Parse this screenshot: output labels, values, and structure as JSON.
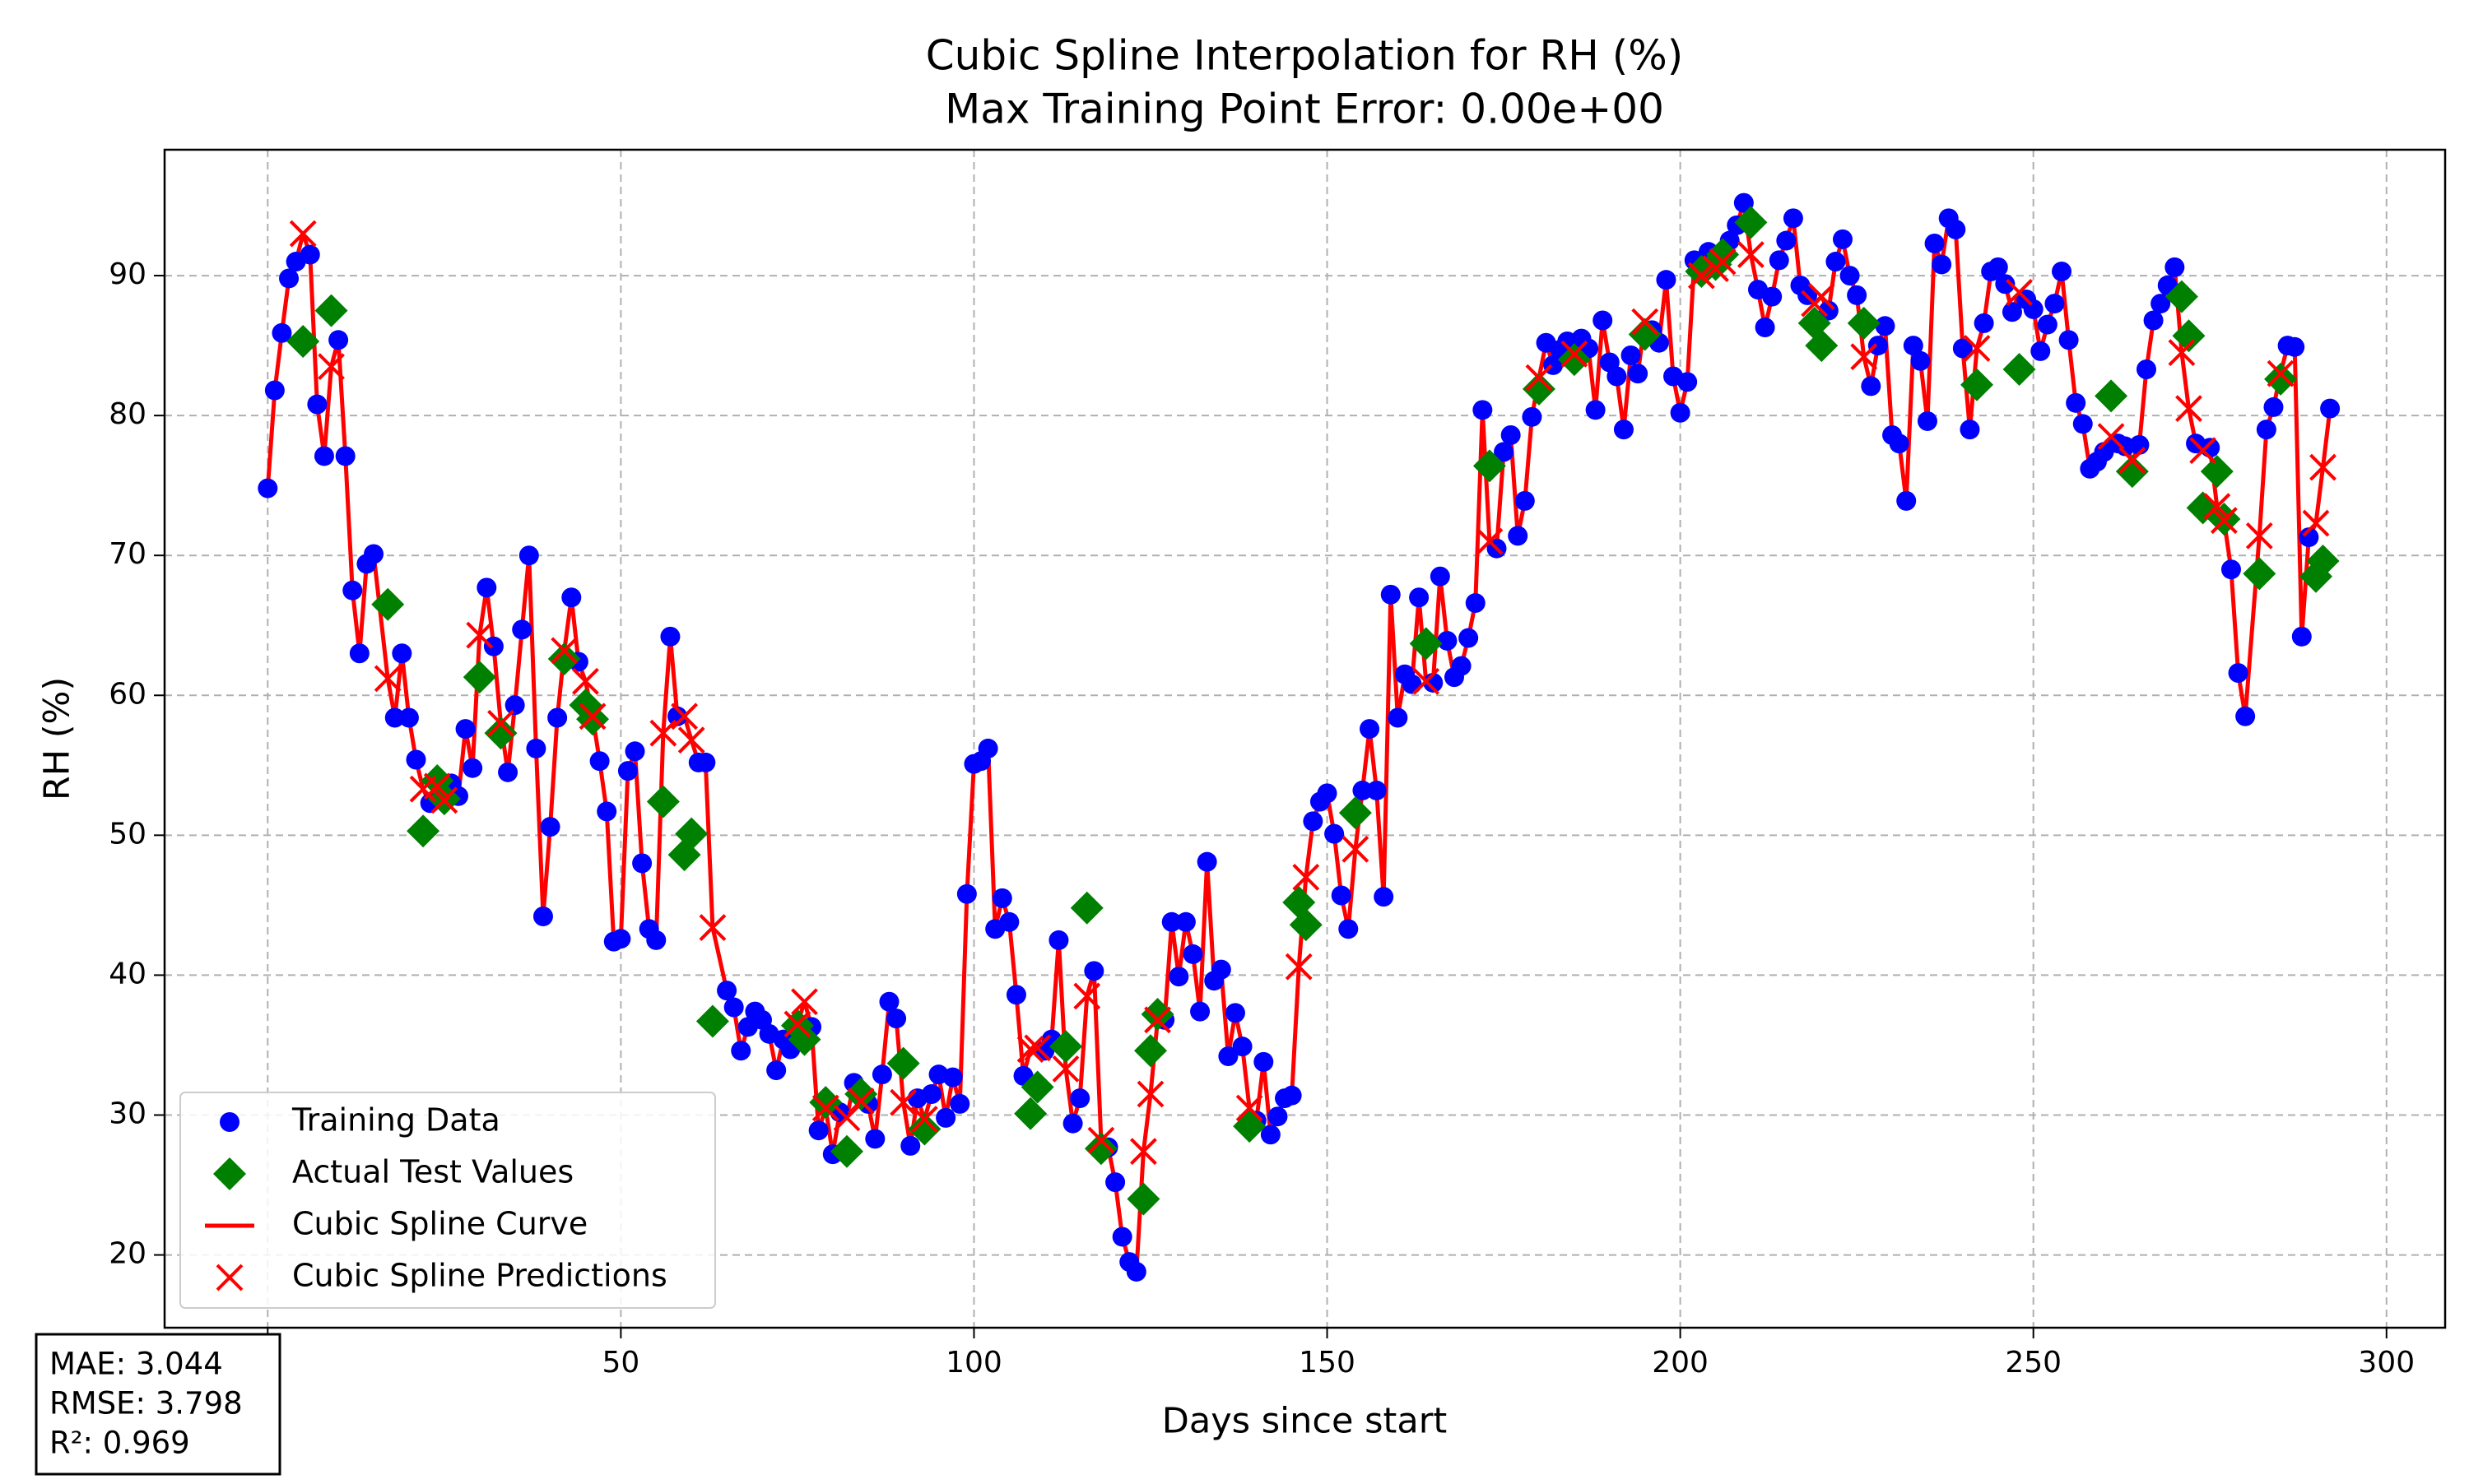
{
  "chart_data": {
    "type": "scatter",
    "title": "Cubic Spline Interpolation for RH (%)",
    "subtitle": "Max Training Point Error: 0.00e+00",
    "xlabel": "Days since start",
    "ylabel": "RH (%)",
    "xlim": [
      -14.6,
      308.3
    ],
    "ylim": [
      14.8,
      99.0
    ],
    "xticks": [
      0,
      50,
      100,
      150,
      200,
      250,
      300
    ],
    "yticks": [
      20,
      30,
      40,
      50,
      60,
      70,
      80,
      90
    ],
    "grid": true,
    "legend": "lower left",
    "series": [
      {
        "name": "Training Data",
        "color": "#0000ff",
        "marker": "circle",
        "x": [
          0,
          1,
          2,
          3,
          4,
          6,
          7,
          8,
          10,
          11,
          12,
          13,
          14,
          15,
          18,
          19,
          20,
          21,
          23,
          26,
          27,
          28,
          29,
          31,
          32,
          34,
          35,
          36,
          37,
          38,
          39,
          40,
          41,
          43,
          44,
          47,
          48,
          49,
          50,
          51,
          52,
          53,
          54,
          55,
          57,
          58,
          61,
          62,
          65,
          66,
          67,
          68,
          69,
          70,
          71,
          72,
          73,
          74,
          77,
          78,
          80,
          81,
          83,
          85,
          86,
          87,
          88,
          89,
          91,
          92,
          94,
          95,
          96,
          97,
          98,
          99,
          100,
          101,
          102,
          103,
          104,
          105,
          106,
          107,
          110,
          111,
          112,
          114,
          115,
          117,
          119,
          120,
          121,
          122,
          123,
          127,
          128,
          129,
          130,
          131,
          132,
          133,
          134,
          135,
          136,
          137,
          138,
          140,
          141,
          142,
          143,
          144,
          145,
          148,
          149,
          150,
          151,
          152,
          153,
          155,
          156,
          157,
          158,
          159,
          160,
          161,
          162,
          163,
          165,
          166,
          167,
          168,
          169,
          170,
          171,
          172,
          174,
          175,
          176,
          177,
          178,
          179,
          181,
          182,
          183,
          184,
          186,
          187,
          188,
          189,
          190,
          191,
          192,
          193,
          194,
          196,
          197,
          198,
          199,
          200,
          201,
          202,
          204,
          207,
          208,
          209,
          211,
          212,
          213,
          214,
          215,
          216,
          217,
          218,
          221,
          222,
          223,
          224,
          225,
          227,
          228,
          229,
          230,
          231,
          232,
          233,
          234,
          235,
          236,
          237,
          238,
          239,
          240,
          241,
          243,
          244,
          245,
          246,
          247,
          249,
          250,
          251,
          252,
          253,
          254,
          255,
          256,
          257,
          258,
          259,
          260,
          262,
          263,
          265,
          266,
          267,
          268,
          269,
          270,
          273,
          275,
          278,
          279,
          280,
          283,
          284,
          286,
          287,
          288,
          289,
          292
        ],
        "values": [
          74.8,
          81.8,
          85.9,
          89.8,
          91.0,
          91.5,
          80.8,
          77.1,
          85.4,
          77.1,
          67.5,
          63.0,
          69.4,
          70.1,
          58.4,
          63.0,
          58.4,
          55.4,
          52.3,
          53.7,
          52.8,
          57.6,
          54.8,
          67.7,
          63.5,
          54.5,
          59.3,
          64.7,
          70.0,
          56.2,
          44.2,
          50.6,
          58.4,
          67.0,
          62.4,
          55.3,
          51.7,
          42.4,
          42.6,
          54.6,
          56.0,
          48.0,
          43.3,
          42.5,
          64.2,
          58.5,
          55.2,
          55.2,
          38.9,
          37.7,
          34.6,
          36.3,
          37.4,
          36.8,
          35.8,
          33.2,
          35.4,
          34.7,
          36.3,
          28.9,
          27.2,
          30.2,
          32.3,
          30.8,
          28.3,
          32.9,
          38.1,
          36.9,
          27.8,
          31.2,
          31.5,
          32.9,
          29.8,
          32.7,
          30.8,
          45.8,
          55.1,
          55.3,
          56.2,
          43.3,
          45.5,
          43.8,
          38.6,
          32.8,
          34.6,
          35.4,
          42.5,
          29.4,
          31.2,
          40.3,
          27.7,
          25.2,
          21.3,
          19.5,
          18.8,
          36.8,
          43.8,
          39.9,
          43.8,
          41.5,
          37.4,
          48.1,
          39.6,
          40.4,
          34.2,
          37.3,
          34.9,
          29.6,
          33.8,
          28.6,
          29.9,
          31.2,
          31.4,
          51.0,
          52.4,
          53.0,
          50.1,
          45.7,
          43.3,
          53.2,
          57.6,
          53.2,
          45.6,
          67.2,
          58.4,
          61.5,
          60.8,
          67.0,
          60.9,
          68.5,
          63.9,
          61.3,
          62.1,
          64.1,
          66.6,
          80.4,
          70.5,
          77.4,
          78.6,
          71.4,
          73.9,
          79.9,
          85.2,
          83.6,
          84.7,
          85.3,
          85.5,
          84.8,
          80.4,
          86.8,
          83.8,
          82.8,
          79.0,
          84.3,
          83.0,
          86.1,
          85.2,
          89.7,
          82.8,
          80.2,
          82.4,
          91.1,
          91.7,
          92.5,
          93.6,
          95.2,
          89.0,
          86.3,
          88.5,
          91.1,
          92.5,
          94.1,
          89.3,
          88.6,
          87.5,
          91.0,
          92.6,
          90.0,
          88.6,
          82.1,
          85.0,
          86.4,
          78.6,
          78.0,
          73.9,
          85.0,
          83.9,
          79.6,
          92.3,
          90.8,
          94.1,
          93.3,
          84.8,
          79.0,
          86.6,
          90.3,
          90.6,
          89.4,
          87.4,
          88.3,
          87.6,
          84.6,
          86.5,
          88.0,
          90.3,
          85.4,
          80.9,
          79.4,
          76.2,
          76.7,
          77.4,
          78.0,
          77.8,
          77.9,
          83.3,
          86.8,
          88.0,
          89.3,
          90.6,
          78.0,
          77.7,
          69.0,
          61.6,
          58.5,
          79.0,
          80.6,
          85.0,
          84.9,
          64.2,
          71.3,
          80.5
        ]
      },
      {
        "name": "Actual Test Values",
        "color": "#008000",
        "marker": "diamond",
        "x": [
          5,
          9,
          17,
          22,
          24,
          25,
          30,
          33,
          42,
          45,
          46,
          56,
          59,
          60,
          63,
          75,
          76,
          79,
          82,
          84,
          90,
          93,
          108,
          109,
          113,
          116,
          118,
          124,
          125,
          126,
          139,
          146,
          147,
          154,
          164,
          173,
          180,
          185,
          195,
          203,
          205,
          206,
          210,
          219,
          220,
          226,
          242,
          248,
          261,
          264,
          271,
          272,
          274,
          276,
          277,
          282,
          285,
          290,
          291
        ],
        "values": [
          85.3,
          87.5,
          66.5,
          50.3,
          53.9,
          52.6,
          61.3,
          57.3,
          62.6,
          59.3,
          58.3,
          52.4,
          48.6,
          50.1,
          36.7,
          36.4,
          35.4,
          30.9,
          27.4,
          31.5,
          33.7,
          29.0,
          30.1,
          32.0,
          34.9,
          44.8,
          27.6,
          24.0,
          34.6,
          37.2,
          29.2,
          45.2,
          43.6,
          51.6,
          63.7,
          76.4,
          81.9,
          84.0,
          85.8,
          90.3,
          90.8,
          91.5,
          93.8,
          86.6,
          85.0,
          86.6,
          82.2,
          83.3,
          81.4,
          76.0,
          88.5,
          85.7,
          73.4,
          76.0,
          72.6,
          68.7,
          82.6,
          68.5,
          69.6
        ]
      },
      {
        "name": "Cubic Spline Curve",
        "color": "#ff0000",
        "marker": "line"
      },
      {
        "name": "Cubic Spline Predictions",
        "color": "#ff0000",
        "marker": "x",
        "x": [
          5,
          9,
          17,
          22,
          24,
          25,
          30,
          33,
          42,
          45,
          46,
          56,
          59,
          60,
          63,
          75,
          76,
          79,
          82,
          84,
          90,
          93,
          108,
          109,
          113,
          116,
          118,
          124,
          125,
          126,
          139,
          146,
          147,
          154,
          164,
          173,
          180,
          185,
          195,
          203,
          205,
          206,
          210,
          219,
          220,
          226,
          242,
          248,
          261,
          264,
          271,
          272,
          274,
          276,
          277,
          282,
          285,
          290,
          291
        ],
        "values": [
          93.0,
          83.5,
          61.2,
          53.3,
          53.5,
          52.5,
          64.3,
          58.0,
          63.2,
          61.0,
          58.5,
          57.3,
          58.5,
          56.8,
          43.4,
          36.5,
          38.1,
          30.5,
          29.8,
          31.0,
          30.9,
          29.7,
          34.7,
          34.8,
          33.3,
          38.5,
          28.2,
          27.4,
          31.5,
          36.8,
          30.5,
          40.6,
          47.0,
          49.0,
          61.0,
          71.0,
          82.7,
          84.4,
          86.7,
          90.0,
          90.5,
          91.0,
          91.5,
          88.0,
          88.5,
          84.2,
          84.8,
          88.8,
          78.5,
          76.8,
          84.5,
          80.5,
          77.5,
          73.5,
          72.5,
          71.4,
          83.0,
          72.3,
          76.3
        ]
      }
    ],
    "annotations": [
      "MAE: 3.044",
      "RMSE: 3.798",
      "R²: 0.969"
    ]
  }
}
